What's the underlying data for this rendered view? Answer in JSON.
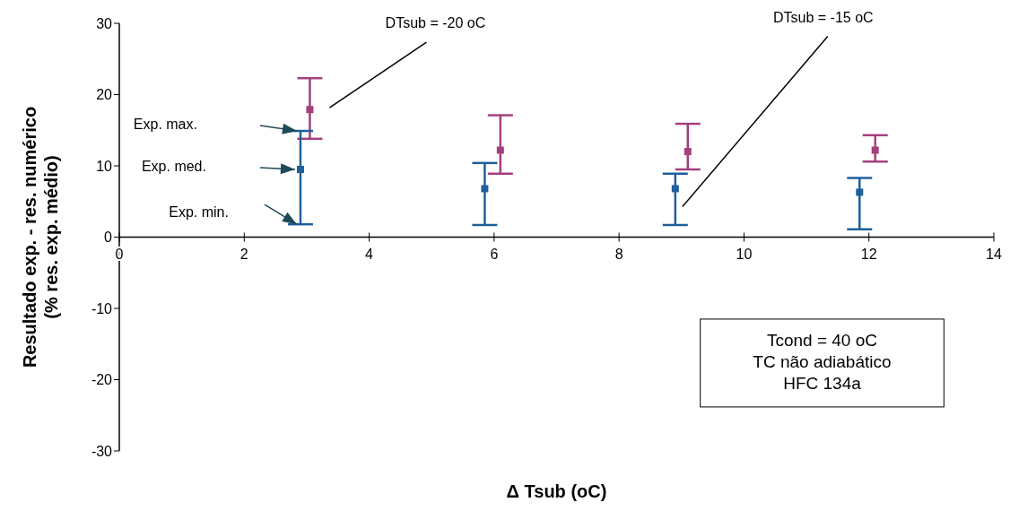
{
  "chart_data": {
    "type": "scatter",
    "xlabel": "Δ Tsub (oC)",
    "ylabel": "Resultado exp. - res. numérico\n(% res. exp. médio)",
    "xlim": [
      0,
      14
    ],
    "xticks": [
      0,
      2,
      4,
      6,
      8,
      10,
      12,
      14
    ],
    "ylim": [
      -30,
      30
    ],
    "yticks": [
      -30,
      -20,
      -10,
      0,
      10,
      20,
      30
    ],
    "grid": false,
    "marker": "square",
    "series": [
      {
        "color": "#a3407d",
        "x": [
          3.05,
          6.1,
          9.1,
          12.1
        ],
        "values": [
          17.9,
          12.2,
          12,
          12.2
        ],
        "errors": [
          [
            13.8,
            22.3
          ],
          [
            8.9,
            17.1
          ],
          [
            9.5,
            15.9
          ],
          [
            10.6,
            14.3
          ]
        ]
      },
      {
        "color": "#1f5f9a",
        "x": [
          2.9,
          5.85,
          8.9,
          11.85
        ],
        "values": [
          9.5,
          6.8,
          6.8,
          6.3
        ],
        "errors": [
          [
            1.8,
            14.9
          ],
          [
            1.7,
            10.4
          ],
          [
            1.7,
            8.9
          ],
          [
            1.1,
            8.3
          ]
        ]
      }
    ],
    "annotations": [
      "DTsub = -20 oC",
      "DTsub = -15 oC",
      "Exp. max.",
      "Exp. med.",
      "Exp. min.",
      "Tcond = 40 oC",
      "TC não adiabático",
      "HFC 134a"
    ]
  }
}
